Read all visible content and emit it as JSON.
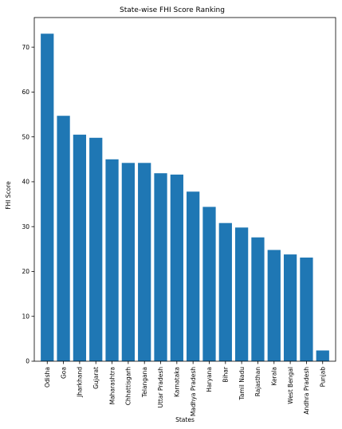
{
  "chart_data": {
    "type": "bar",
    "title": "State-wise FHI Score Ranking",
    "xlabel": "States",
    "ylabel": "FHI Score",
    "categories": [
      "Odisha",
      "Goa",
      "Jharkhand",
      "Gujarat",
      "Maharashtra",
      "Chhattisgarh",
      "Telangana",
      "Uttar Pradesh",
      "Karnataka",
      "Madhya Pradesh",
      "Haryana",
      "Bihar",
      "Tamil Nadu",
      "Rajasthan",
      "Kerala",
      "West Bengal",
      "Andhra Pradesh",
      "Punjab"
    ],
    "values": [
      73.0,
      54.7,
      50.5,
      49.8,
      45.0,
      44.2,
      44.2,
      41.9,
      41.6,
      37.8,
      34.4,
      30.8,
      29.8,
      27.6,
      24.8,
      23.8,
      23.1,
      2.4
    ],
    "ylim": [
      0,
      76.6
    ],
    "yticks": [
      0,
      10,
      20,
      30,
      40,
      50,
      60,
      70
    ],
    "bar_color": "#1f77b4",
    "grid": false,
    "legend": "none"
  }
}
